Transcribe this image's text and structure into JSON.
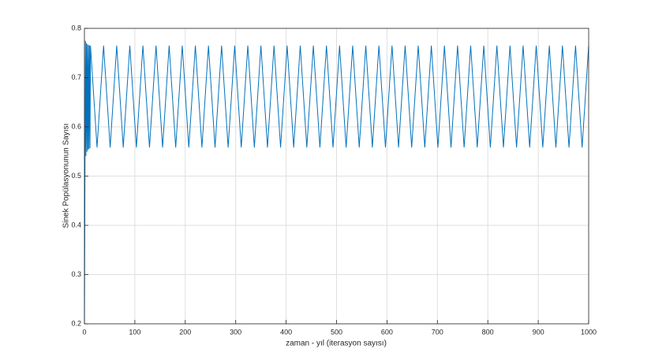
{
  "chart_data": {
    "type": "line",
    "xlabel": "zaman - yıl (iterasyon sayısı)",
    "ylabel": "Sinek Popülasyonunun Sayısı",
    "x": [
      0,
      1,
      2,
      3,
      4,
      5,
      6,
      7,
      8,
      9,
      10,
      11,
      12,
      25,
      38,
      51,
      64,
      77,
      90,
      103,
      116,
      129,
      142,
      155,
      168,
      181,
      194,
      207,
      220,
      233,
      246,
      259,
      272,
      285,
      298,
      311,
      324,
      337,
      350,
      363,
      376,
      389,
      402,
      415,
      428,
      441,
      454,
      467,
      480,
      493,
      506,
      519,
      532,
      545,
      558,
      571,
      584,
      597,
      610,
      623,
      636,
      649,
      662,
      675,
      688,
      701,
      714,
      727,
      740,
      753,
      766,
      779,
      792,
      805,
      818,
      831,
      844,
      857,
      870,
      883,
      896,
      909,
      922,
      935,
      948,
      961,
      974,
      987,
      1000
    ],
    "values": [
      0.2,
      0.496,
      0.7749,
      0.5407,
      0.7699,
      0.5492,
      0.7675,
      0.5531,
      0.7662,
      0.5553,
      0.7654,
      0.5566,
      0.7649,
      0.558,
      0.765,
      0.558,
      0.765,
      0.558,
      0.765,
      0.558,
      0.765,
      0.558,
      0.765,
      0.558,
      0.765,
      0.558,
      0.765,
      0.558,
      0.765,
      0.558,
      0.765,
      0.558,
      0.765,
      0.558,
      0.765,
      0.558,
      0.765,
      0.558,
      0.765,
      0.558,
      0.765,
      0.558,
      0.765,
      0.558,
      0.765,
      0.558,
      0.765,
      0.558,
      0.765,
      0.558,
      0.765,
      0.558,
      0.765,
      0.558,
      0.765,
      0.558,
      0.765,
      0.558,
      0.765,
      0.558,
      0.765,
      0.558,
      0.765,
      0.558,
      0.765,
      0.558,
      0.765,
      0.558,
      0.765,
      0.558,
      0.765,
      0.558,
      0.765,
      0.558,
      0.765,
      0.558,
      0.765,
      0.558,
      0.765,
      0.558,
      0.765,
      0.558,
      0.765,
      0.558,
      0.765,
      0.558,
      0.765,
      0.558,
      0.765
    ],
    "color": "#0072bd",
    "xlim": [
      0,
      1000
    ],
    "xticks": [
      0,
      100,
      200,
      300,
      400,
      500,
      600,
      700,
      800,
      900,
      1000
    ],
    "ylim": [
      0.2,
      0.8
    ],
    "yticks": [
      0.2,
      0.3,
      0.4,
      0.5,
      0.6,
      0.7,
      0.8
    ],
    "grid": true
  }
}
